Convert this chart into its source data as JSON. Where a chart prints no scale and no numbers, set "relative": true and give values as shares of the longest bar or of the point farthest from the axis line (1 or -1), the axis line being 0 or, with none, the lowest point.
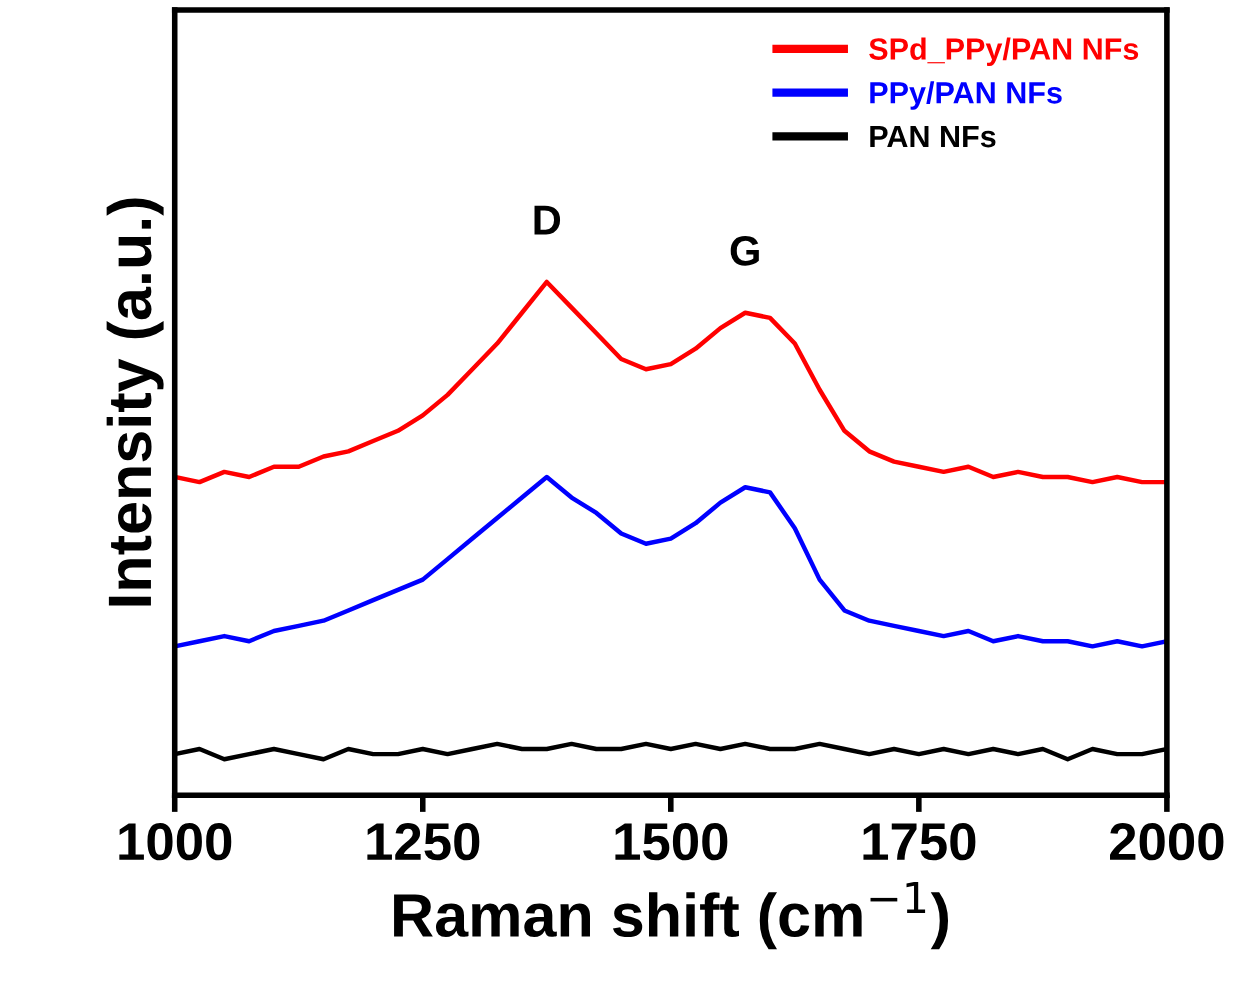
{
  "chart_data": {
    "type": "line",
    "relative": true,
    "xlabel": "Raman shift (cm$^{−1}$)",
    "ylabel": "Intensity (a.u.)",
    "xlim": [
      1000,
      2000
    ],
    "xticks": [
      1000,
      1250,
      1500,
      1750,
      2000
    ],
    "grid": false,
    "legend": "top right",
    "tick_labels": "x",
    "x": [
      1000,
      1025,
      1050,
      1075,
      1100,
      1125,
      1150,
      1175,
      1200,
      1225,
      1250,
      1275,
      1300,
      1325,
      1350,
      1375,
      1400,
      1425,
      1450,
      1475,
      1500,
      1525,
      1550,
      1575,
      1600,
      1625,
      1650,
      1675,
      1700,
      1725,
      1750,
      1775,
      1800,
      1825,
      1850,
      1875,
      1900,
      1925,
      1950,
      1975,
      2000
    ],
    "series": [
      {
        "name": "SPd_PPy/PAN NFs",
        "color": "#ff0000",
        "values": [
          0.62,
          0.61,
          0.63,
          0.62,
          0.64,
          0.64,
          0.66,
          0.67,
          0.69,
          0.71,
          0.74,
          0.78,
          0.83,
          0.88,
          0.94,
          1.0,
          0.95,
          0.9,
          0.85,
          0.83,
          0.84,
          0.87,
          0.91,
          0.94,
          0.93,
          0.88,
          0.79,
          0.71,
          0.67,
          0.65,
          0.64,
          0.63,
          0.64,
          0.62,
          0.63,
          0.62,
          0.62,
          0.61,
          0.62,
          0.61,
          0.61
        ]
      },
      {
        "name": "PPy/PAN NFs",
        "color": "#0000ff",
        "values": [
          0.29,
          0.3,
          0.31,
          0.3,
          0.32,
          0.33,
          0.34,
          0.36,
          0.38,
          0.4,
          0.42,
          0.46,
          0.5,
          0.54,
          0.58,
          0.62,
          0.58,
          0.55,
          0.51,
          0.49,
          0.5,
          0.53,
          0.57,
          0.6,
          0.59,
          0.52,
          0.42,
          0.36,
          0.34,
          0.33,
          0.32,
          0.31,
          0.32,
          0.3,
          0.31,
          0.3,
          0.3,
          0.29,
          0.3,
          0.29,
          0.3
        ]
      },
      {
        "name": "PAN NFs",
        "color": "#000000",
        "values": [
          0.08,
          0.09,
          0.07,
          0.08,
          0.09,
          0.08,
          0.07,
          0.09,
          0.08,
          0.08,
          0.09,
          0.08,
          0.09,
          0.1,
          0.09,
          0.09,
          0.1,
          0.09,
          0.09,
          0.1,
          0.09,
          0.1,
          0.09,
          0.1,
          0.09,
          0.09,
          0.1,
          0.09,
          0.08,
          0.09,
          0.08,
          0.09,
          0.08,
          0.09,
          0.08,
          0.09,
          0.07,
          0.09,
          0.08,
          0.08,
          0.09
        ]
      }
    ],
    "annotations": [
      "D",
      "G"
    ]
  }
}
